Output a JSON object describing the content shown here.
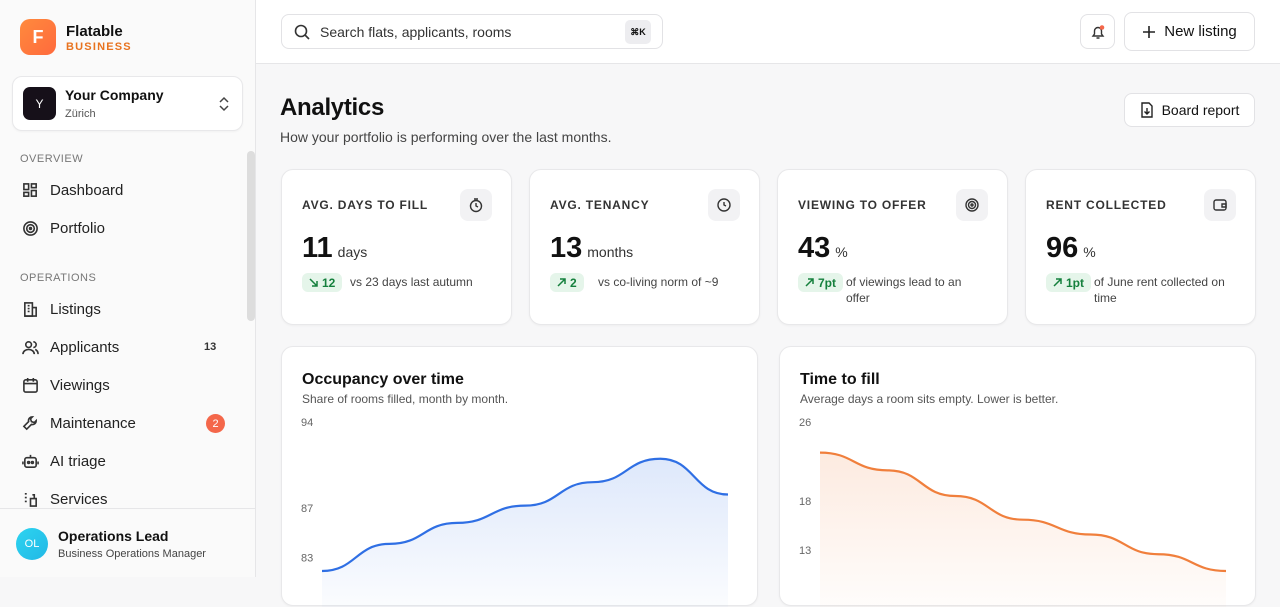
{
  "sidebar": {
    "brand": {
      "logo": "F",
      "name": "Flatable",
      "tagline": "BUSINESS"
    },
    "company": {
      "avatar": "Y",
      "name": "Your Company",
      "city": "Zürich"
    },
    "sections": [
      {
        "title": "OVERVIEW",
        "items": [
          {
            "label": "Dashboard"
          },
          {
            "label": "Portfolio"
          }
        ]
      },
      {
        "title": "OPERATIONS",
        "items": [
          {
            "label": "Listings"
          },
          {
            "label": "Applicants",
            "count": 13
          },
          {
            "label": "Viewings"
          },
          {
            "label": "Maintenance",
            "badge": 2
          },
          {
            "label": "AI triage"
          },
          {
            "label": "Services"
          }
        ]
      }
    ],
    "user": {
      "initials": "OL",
      "name": "Operations Lead",
      "role": "Business Operations Manager"
    }
  },
  "topbar": {
    "search_placeholder": "Search flats, applicants, rooms",
    "shortcut": "⌘K",
    "new_button": "New listing"
  },
  "header": {
    "title": "Analytics",
    "subtitle": "How your portfolio is performing over the last months.",
    "report_button": "Board report"
  },
  "kpis": [
    {
      "label": "AVG. DAYS TO FILL",
      "value": 11,
      "unit": "days",
      "delta": 12,
      "note": "vs 23 days last autumn"
    },
    {
      "label": "AVG. TENANCY",
      "value": 13,
      "unit": "months",
      "delta": 2,
      "note": "vs co-living norm of ~9"
    },
    {
      "label": "VIEWING TO OFFER",
      "value": 43,
      "unit": "%",
      "delta": "7pt",
      "note": "of viewings lead to an offer"
    },
    {
      "label": "RENT COLLECTED",
      "value": 96,
      "unit": "%",
      "delta": "1pt",
      "note": "of June rent collected on time"
    }
  ],
  "chart_data": [
    {
      "type": "area",
      "title": "Occupancy over time",
      "subtitle": "Share of rooms filled, month by month.",
      "values": [
        82,
        84.2,
        85.9,
        87.3,
        89.2,
        91.1,
        88.2
      ],
      "color": "#2f6fe4",
      "ylim": [
        82,
        94
      ],
      "yticks": [
        94,
        87,
        83
      ]
    },
    {
      "type": "area",
      "title": "Time to fill",
      "subtitle": "Average days a room sits empty. Lower is better.",
      "values": [
        23,
        21.2,
        18.6,
        16.2,
        14.7,
        12.7,
        11
      ],
      "color": "#f07f3c",
      "ylim": [
        11,
        26
      ],
      "yticks": [
        26,
        18,
        13
      ]
    }
  ]
}
